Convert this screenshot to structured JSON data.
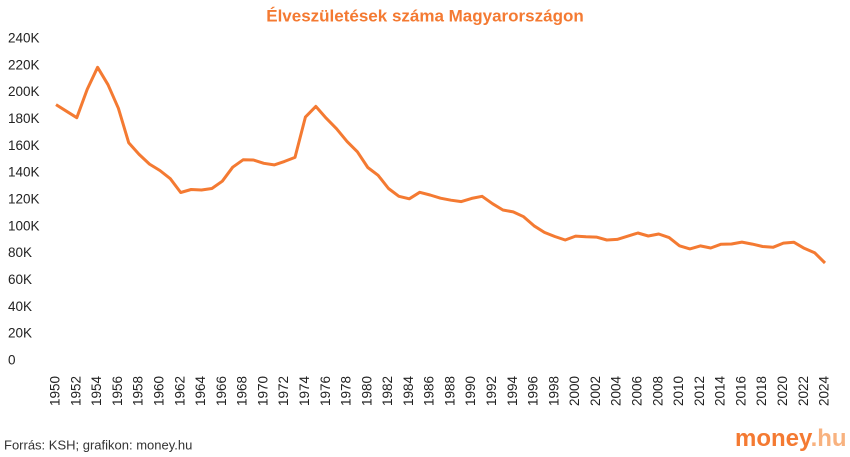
{
  "chart_data": {
    "type": "line",
    "title": "Élveszületések száma Magyarországon",
    "source": "Forrás: KSH; grafikon: money.hu",
    "logo": [
      "money",
      ".hu"
    ],
    "x": [
      1950,
      1951,
      1952,
      1953,
      1954,
      1955,
      1956,
      1957,
      1958,
      1959,
      1960,
      1961,
      1962,
      1963,
      1964,
      1965,
      1966,
      1967,
      1968,
      1969,
      1970,
      1971,
      1972,
      1973,
      1974,
      1975,
      1976,
      1977,
      1978,
      1979,
      1980,
      1981,
      1982,
      1983,
      1984,
      1985,
      1986,
      1987,
      1988,
      1989,
      1990,
      1991,
      1992,
      1993,
      1994,
      1995,
      1996,
      1997,
      1998,
      1999,
      2000,
      2001,
      2002,
      2003,
      2004,
      2005,
      2006,
      2007,
      2008,
      2009,
      2010,
      2011,
      2012,
      2013,
      2014,
      2015,
      2016,
      2017,
      2018,
      2019,
      2020,
      2021,
      2022,
      2023,
      2024
    ],
    "series": [
      {
        "name": "Élveszületések",
        "color": "#f47a32",
        "values": [
          195567,
          190645,
          185820,
          206926,
          223347,
          210430,
          192810,
          167202,
          158428,
          151194,
          146461,
          140365,
          130053,
          132335,
          131899,
          133009,
          138489,
          148886,
          154419,
          154318,
          151819,
          150640,
          153265,
          156224,
          186288,
          194240,
          185405,
          177574,
          168160,
          160364,
          148673,
          142890,
          133008,
          127258,
          125359,
          130200,
          128204,
          125840,
          124296,
          123304,
          125679,
          127207,
          121724,
          117033,
          115598,
          112054,
          105272,
          100350,
          97301,
          94645,
          97597,
          97047,
          96804,
          94647,
          95137,
          97496,
          99871,
          97613,
          99149,
          96442,
          90335,
          88049,
          90269,
          88689,
          91510,
          91690,
          93063,
          91577,
          89807,
          89193,
          92338,
          93039,
          88491,
          85226,
          77511
        ]
      }
    ],
    "xlim": [
      1950,
      2024
    ],
    "xticks": [
      1950,
      1952,
      1954,
      1956,
      1958,
      1960,
      1962,
      1964,
      1966,
      1968,
      1970,
      1972,
      1974,
      1976,
      1978,
      1980,
      1982,
      1984,
      1986,
      1988,
      1990,
      1992,
      1994,
      1996,
      1998,
      2000,
      2002,
      2004,
      2006,
      2008,
      2010,
      2012,
      2014,
      2016,
      2018,
      2020,
      2022,
      2024
    ],
    "ylim": [
      0,
      240000
    ],
    "yticks": [
      0,
      {
        "value": 20000,
        "label": "20K"
      },
      {
        "value": 40000,
        "label": "40K"
      },
      {
        "value": 60000,
        "label": "60K"
      },
      {
        "value": 80000,
        "label": "80K"
      },
      {
        "value": 100000,
        "label": "100K"
      },
      {
        "value": 120000,
        "label": "120K"
      },
      {
        "value": 140000,
        "label": "140K"
      },
      {
        "value": 160000,
        "label": "160K"
      },
      {
        "value": 180000,
        "label": "180K"
      },
      {
        "value": 200000,
        "label": "200K"
      },
      {
        "value": 220000,
        "label": "220K"
      },
      {
        "value": 240000,
        "label": "240K"
      }
    ],
    "grid": false
  }
}
